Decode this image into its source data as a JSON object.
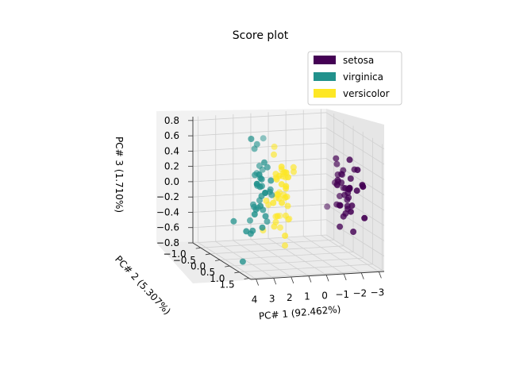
{
  "chart_data": {
    "type": "scatter",
    "projection": "3d",
    "title": "Score plot",
    "xlabel": "PC# 1 (92.462%)",
    "ylabel": "PC# 2 (5.307%)",
    "zlabel": "PC# 3 (1.710%)",
    "x_ticks": [
      "4",
      "3",
      "2",
      "1",
      "0",
      "−1",
      "−2",
      "−3"
    ],
    "y_ticks": [
      "−1.0",
      "−0.5",
      "0.0",
      "0.5",
      "1.0",
      "1.5"
    ],
    "z_ticks": [
      "0.8",
      "0.6",
      "0.4",
      "0.2",
      "0.0",
      "−0.2",
      "−0.4",
      "−0.6",
      "−0.8"
    ],
    "xlim": [
      -3.3,
      4.3
    ],
    "ylim": [
      -1.4,
      1.6
    ],
    "zlim": [
      -0.8,
      0.85
    ],
    "grid": true,
    "legend_position": "top-right",
    "series": [
      {
        "name": "setosa",
        "color": "#440154",
        "points": [
          [
            -2.68,
            0.32,
            -0.03
          ],
          [
            -2.71,
            -0.18,
            -0.21
          ],
          [
            -2.89,
            -0.14,
            0.02
          ],
          [
            -2.75,
            -0.32,
            0.03
          ],
          [
            -2.73,
            0.33,
            0.09
          ],
          [
            -2.28,
            0.74,
            0.17
          ],
          [
            -2.82,
            -0.09,
            0.26
          ],
          [
            -2.63,
            0.16,
            -0.02
          ],
          [
            -2.89,
            -0.58,
            0.02
          ],
          [
            -2.67,
            -0.11,
            -0.2
          ],
          [
            -2.51,
            0.65,
            -0.08
          ],
          [
            -2.61,
            0.01,
            0.23
          ],
          [
            -2.79,
            -0.24,
            -0.1
          ],
          [
            -3.23,
            -0.51,
            0.13
          ],
          [
            -2.64,
            1.18,
            -0.16
          ],
          [
            -2.38,
            1.34,
            0.28
          ],
          [
            -2.62,
            0.81,
            0.14
          ],
          [
            -2.65,
            0.31,
            0.03
          ],
          [
            -2.2,
            0.87,
            -0.12
          ],
          [
            -2.59,
            0.51,
            0.25
          ],
          [
            -2.31,
            0.39,
            -0.26
          ],
          [
            -2.54,
            0.43,
            0.1
          ],
          [
            -3.22,
            0.13,
            0.3
          ],
          [
            -2.3,
            0.1,
            0.17
          ],
          [
            -2.36,
            -0.04,
            0.43
          ],
          [
            -2.51,
            -0.14,
            -0.19
          ],
          [
            -2.47,
            0.14,
            0.14
          ],
          [
            -2.56,
            0.37,
            -0.13
          ],
          [
            -2.64,
            0.31,
            -0.18
          ],
          [
            -2.63,
            -0.19,
            0.19
          ],
          [
            -2.59,
            -0.2,
            0.06
          ],
          [
            -2.41,
            0.41,
            -0.22
          ],
          [
            -2.65,
            0.81,
            0.41
          ],
          [
            -2.6,
            1.1,
            0.26
          ],
          [
            -2.67,
            -0.11,
            -0.2
          ],
          [
            -2.87,
            0.08,
            -0.1
          ],
          [
            -2.63,
            0.61,
            -0.43
          ],
          [
            -2.98,
            -0.49,
            0.05
          ],
          [
            -2.59,
            0.23,
            0.08
          ],
          [
            -2.77,
            0.27,
            0.07
          ],
          [
            -2.85,
            -0.94,
            -0.35
          ],
          [
            -2.63,
            -0.24,
            0.32
          ],
          [
            -2.39,
            0.64,
            0.52
          ],
          [
            -2.16,
            0.34,
            -0.4
          ]
        ]
      },
      {
        "name": "virginica",
        "color": "#21918c",
        "points": [
          [
            2.53,
            0.01,
            0.76
          ],
          [
            1.42,
            -0.57,
            0.3
          ],
          [
            2.62,
            0.34,
            -0.11
          ],
          [
            1.97,
            -0.18,
            0.11
          ],
          [
            2.35,
            0.04,
            0.29
          ],
          [
            3.4,
            0.55,
            -0.35
          ],
          [
            0.52,
            -1.19,
            0.55
          ],
          [
            2.93,
            0.35,
            -0.42
          ],
          [
            2.32,
            -0.24,
            -0.35
          ],
          [
            2.92,
            0.78,
            0.42
          ],
          [
            1.66,
            0.24,
            0.24
          ],
          [
            1.8,
            -0.22,
            -0.09
          ],
          [
            2.17,
            0.22,
            0.04
          ],
          [
            1.34,
            -0.78,
            0.17
          ],
          [
            1.59,
            -0.54,
            0.59
          ],
          [
            1.9,
            0.12,
            0.46
          ],
          [
            1.95,
            0.04,
            0.14
          ],
          [
            3.49,
            1.18,
            0.37
          ],
          [
            3.8,
            0.26,
            -0.26
          ],
          [
            1.3,
            -0.76,
            -0.28
          ],
          [
            2.43,
            0.38,
            0.19
          ],
          [
            1.2,
            -0.61,
            0.24
          ],
          [
            3.5,
            0.46,
            -0.76
          ],
          [
            1.39,
            -0.2,
            -0.37
          ],
          [
            2.28,
            0.33,
            0.28
          ],
          [
            2.61,
            0.56,
            -0.03
          ],
          [
            1.26,
            -0.18,
            0.02
          ],
          [
            1.29,
            -0.12,
            0.06
          ],
          [
            2.12,
            -0.21,
            -0.17
          ],
          [
            2.39,
            0.46,
            -0.33
          ],
          [
            2.84,
            0.37,
            -0.38
          ],
          [
            3.23,
            1.37,
            0.28
          ],
          [
            2.16,
            -0.22,
            -0.14
          ],
          [
            1.44,
            -0.14,
            0.35
          ],
          [
            1.78,
            -0.5,
            0.54
          ],
          [
            3.08,
            0.69,
            -0.11
          ],
          [
            2.14,
            0.14,
            0.26
          ],
          [
            1.9,
            0.05,
            -0.17
          ],
          [
            1.17,
            -0.16,
            -0.02
          ],
          [
            2.11,
            0.37,
            -0.2
          ]
        ]
      },
      {
        "name": "versicolor",
        "color": "#fde725",
        "points": [
          [
            1.28,
            0.69,
            0.41
          ],
          [
            0.93,
            0.32,
            0.02
          ],
          [
            1.46,
            0.5,
            0.34
          ],
          [
            0.18,
            -0.83,
            -0.18
          ],
          [
            1.09,
            0.07,
            -0.26
          ],
          [
            0.64,
            -0.42,
            0.16
          ],
          [
            1.09,
            0.28,
            0.19
          ],
          [
            -0.75,
            -1.0,
            -0.49
          ],
          [
            1.04,
            0.23,
            0.41
          ],
          [
            -0.01,
            -0.72,
            0.21
          ],
          [
            -0.51,
            -1.26,
            -0.49
          ],
          [
            0.51,
            -0.1,
            0.28
          ],
          [
            0.26,
            -0.55,
            -0.52
          ],
          [
            0.98,
            -0.12,
            -0.37
          ],
          [
            -0.17,
            -0.25,
            0.31
          ],
          [
            0.93,
            0.47,
            0.31
          ],
          [
            0.66,
            -0.35,
            -0.05
          ],
          [
            0.23,
            -0.33,
            -0.72
          ],
          [
            0.94,
            -0.54,
            -0.21
          ],
          [
            0.04,
            -0.58,
            0.19
          ],
          [
            1.12,
            -0.08,
            -0.42
          ],
          [
            0.36,
            -0.07,
            -0.16
          ],
          [
            1.3,
            -0.33,
            -0.12
          ],
          [
            0.92,
            -0.18,
            0.25
          ],
          [
            0.71,
            0.15,
            0.11
          ],
          [
            0.9,
            0.33,
            0.17
          ],
          [
            1.33,
            0.24,
            0.25
          ],
          [
            1.56,
            0.27,
            -0.05
          ],
          [
            0.81,
            -0.16,
            -0.02
          ],
          [
            -0.31,
            -0.37,
            0.23
          ],
          [
            -0.07,
            -0.7,
            0.12
          ],
          [
            -0.19,
            -0.68,
            0.11
          ],
          [
            0.14,
            -0.31,
            -0.08
          ],
          [
            1.38,
            -0.42,
            -0.52
          ],
          [
            0.59,
            -0.48,
            -0.36
          ],
          [
            0.81,
            0.2,
            -0.5
          ],
          [
            1.22,
            0.41,
            -0.03
          ],
          [
            0.82,
            -0.37,
            0.47
          ],
          [
            0.25,
            -0.27,
            -0.32
          ],
          [
            0.16,
            -0.68,
            -0.08
          ],
          [
            0.46,
            -0.67,
            0.52
          ],
          [
            0.89,
            -0.03,
            -0.05
          ],
          [
            0.23,
            -0.4,
            -0.07
          ],
          [
            -0.71,
            -1.01,
            -0.5
          ]
        ]
      }
    ]
  }
}
